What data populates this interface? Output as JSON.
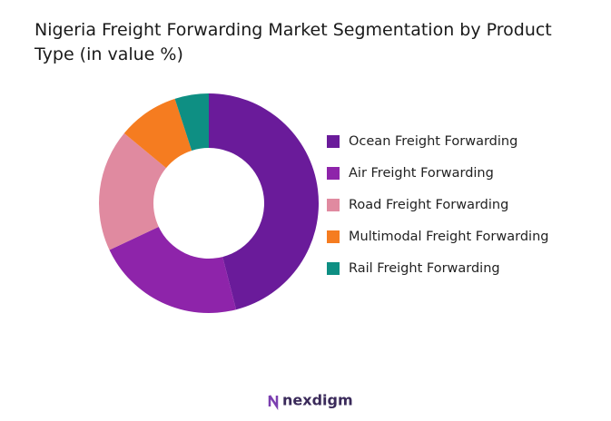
{
  "chart_data": {
    "type": "pie",
    "title": "Nigeria Freight Forwarding Market Segmentation by Product Type (in value %)",
    "categories": [
      "Ocean Freight Forwarding",
      "Air Freight Forwarding",
      "Road Freight Forwarding",
      "Multimodal Freight Forwarding",
      "Rail Freight Forwarding"
    ],
    "values": [
      46,
      22,
      18,
      9,
      5
    ],
    "colors": [
      "#6a1b9a",
      "#8e24aa",
      "#e08aa0",
      "#f57c20",
      "#0e8f83"
    ],
    "donut": true,
    "legend": "right"
  },
  "brand": "nexdigm"
}
